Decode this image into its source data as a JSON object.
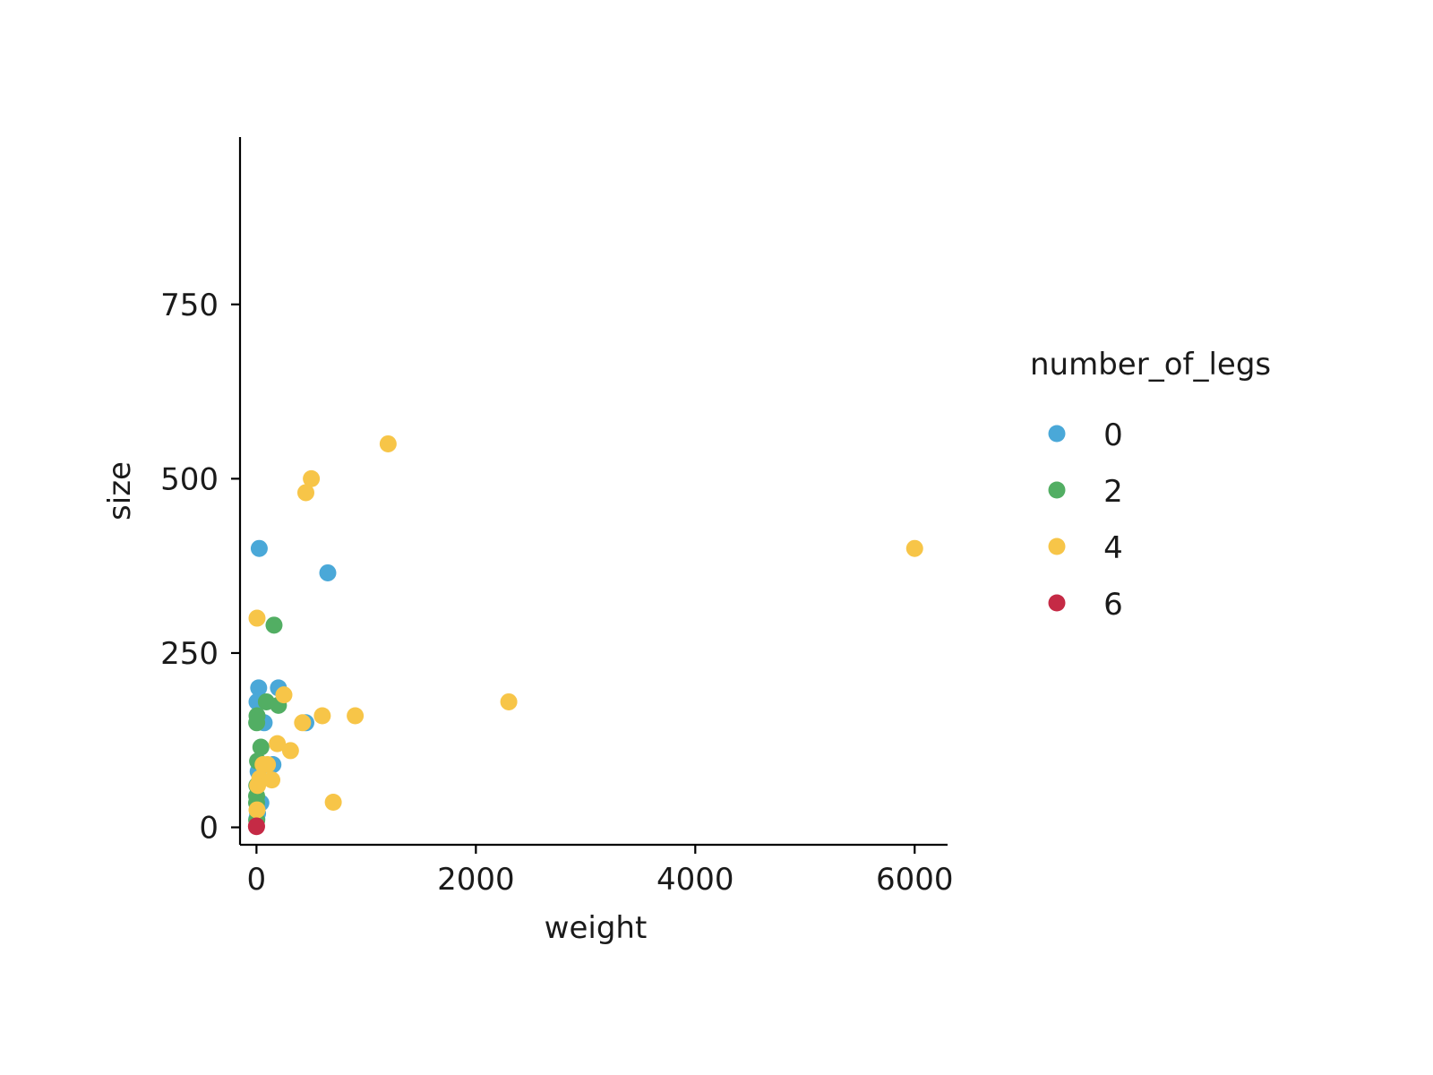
{
  "chart_data": {
    "type": "scatter",
    "title": "",
    "xlabel": "weight",
    "ylabel": "size",
    "xlim": [
      -150,
      6300
    ],
    "ylim": [
      -25,
      990
    ],
    "xticks": [
      0,
      2000,
      4000,
      6000
    ],
    "yticks": [
      0,
      250,
      500,
      750
    ],
    "xtick_labels": [
      "0",
      "2000",
      "4000",
      "6000"
    ],
    "ytick_labels": [
      "0",
      "250",
      "500",
      "750"
    ],
    "grid": false,
    "legend": {
      "title": "number_of_legs",
      "placement": "right"
    },
    "series": [
      {
        "name": "0",
        "color": "#4aa8d8",
        "points": [
          {
            "x": 25,
            "y": 400
          },
          {
            "x": 650,
            "y": 365
          },
          {
            "x": 20,
            "y": 200
          },
          {
            "x": 200,
            "y": 200
          },
          {
            "x": 5,
            "y": 180
          },
          {
            "x": 450,
            "y": 150
          },
          {
            "x": 70,
            "y": 150
          },
          {
            "x": 150,
            "y": 90
          },
          {
            "x": 15,
            "y": 80
          },
          {
            "x": 40,
            "y": 35
          },
          {
            "x": 10,
            "y": 20
          },
          {
            "x": 3,
            "y": 12
          }
        ]
      },
      {
        "name": "2",
        "color": "#52ae63",
        "points": [
          {
            "x": 160,
            "y": 290
          },
          {
            "x": 90,
            "y": 180
          },
          {
            "x": 200,
            "y": 175
          },
          {
            "x": 5,
            "y": 160
          },
          {
            "x": 2,
            "y": 150
          },
          {
            "x": 40,
            "y": 115
          },
          {
            "x": 10,
            "y": 95
          },
          {
            "x": 3,
            "y": 60
          },
          {
            "x": 1,
            "y": 45
          },
          {
            "x": 1,
            "y": 35
          },
          {
            "x": 2,
            "y": 10
          }
        ]
      },
      {
        "name": "4",
        "color": "#f7c548",
        "points": [
          {
            "x": 6000,
            "y": 400
          },
          {
            "x": 1200,
            "y": 550
          },
          {
            "x": 500,
            "y": 500
          },
          {
            "x": 450,
            "y": 480
          },
          {
            "x": 5,
            "y": 300
          },
          {
            "x": 2300,
            "y": 180
          },
          {
            "x": 900,
            "y": 160
          },
          {
            "x": 600,
            "y": 160
          },
          {
            "x": 250,
            "y": 190
          },
          {
            "x": 420,
            "y": 150
          },
          {
            "x": 190,
            "y": 120
          },
          {
            "x": 310,
            "y": 110
          },
          {
            "x": 100,
            "y": 90
          },
          {
            "x": 60,
            "y": 90
          },
          {
            "x": 140,
            "y": 68
          },
          {
            "x": 30,
            "y": 70
          },
          {
            "x": 10,
            "y": 60
          },
          {
            "x": 700,
            "y": 36
          },
          {
            "x": 5,
            "y": 25
          }
        ]
      },
      {
        "name": "6",
        "color": "#c52a45",
        "points": [
          {
            "x": 0.1,
            "y": 2
          },
          {
            "x": 0.05,
            "y": 1
          }
        ]
      }
    ]
  }
}
